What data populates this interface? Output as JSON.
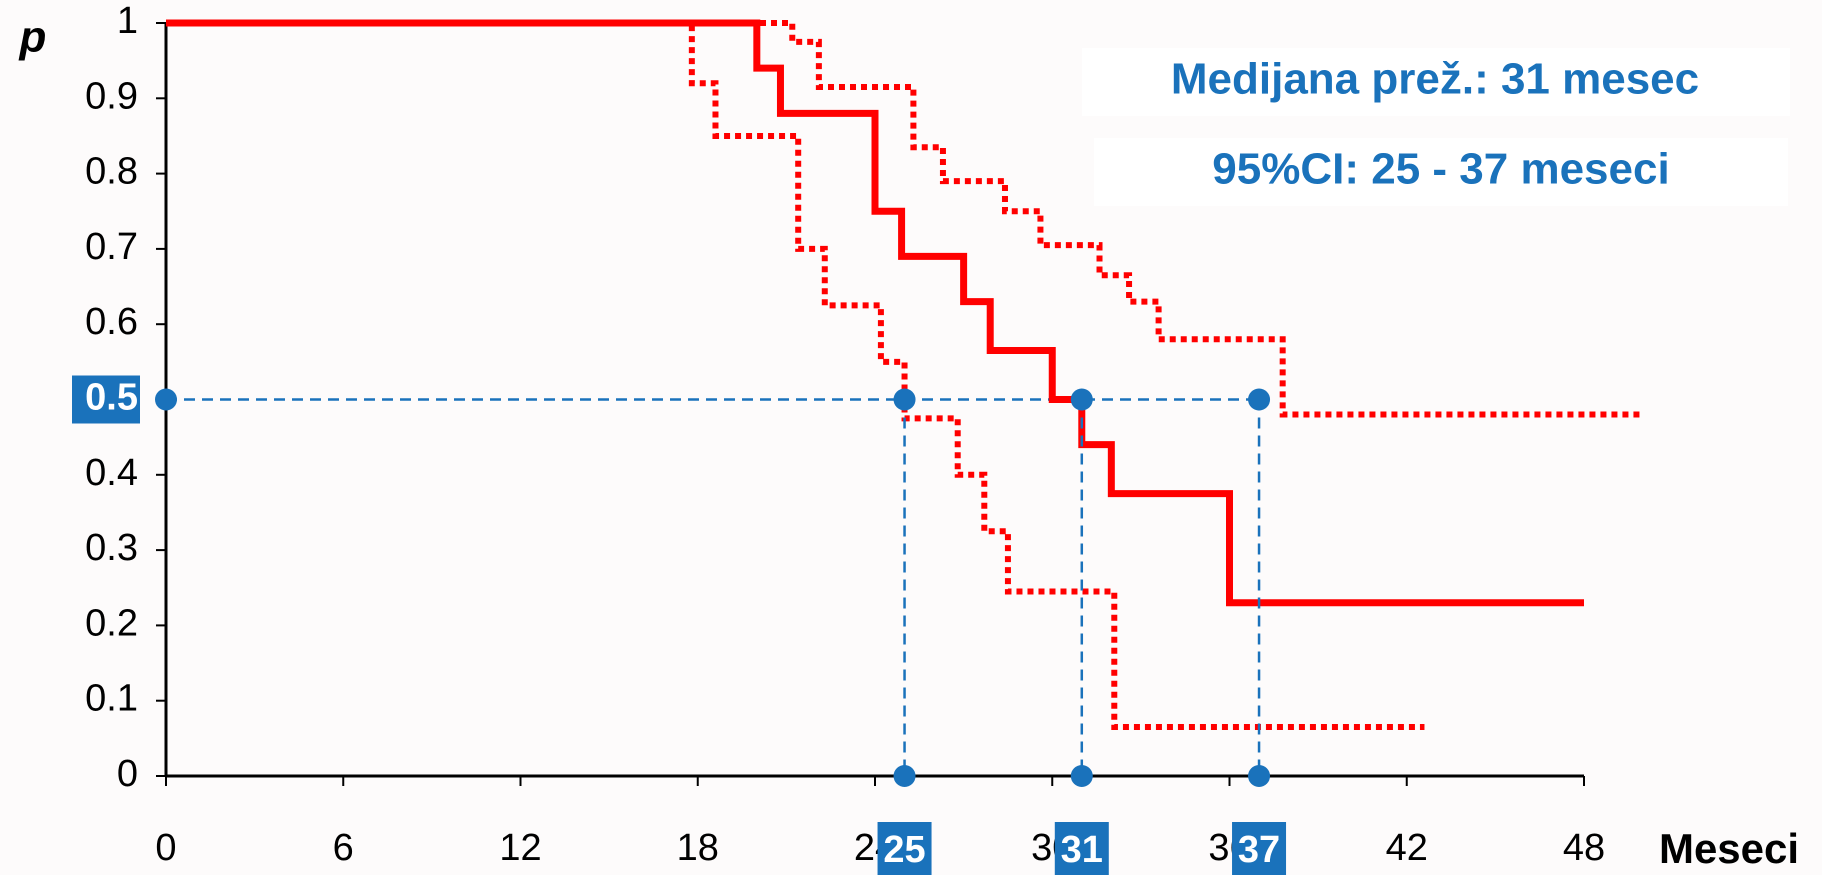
{
  "chart_data": {
    "type": "step",
    "annotations": [
      "Medijana prež.: 31 mesec",
      "95%CI: 25 - 37 meseci"
    ],
    "x_label": "Meseci",
    "y_label": "p",
    "xlim": [
      0,
      48
    ],
    "ylim": [
      0,
      1
    ],
    "xticks": [
      0,
      6,
      12,
      18,
      24,
      30,
      36,
      42,
      48
    ],
    "yticks": [
      0,
      0.1,
      0.2,
      0.3,
      0.4,
      0.5,
      0.6,
      0.7,
      0.8,
      0.9,
      1
    ],
    "series": [
      {
        "color": "#ff0000",
        "style": "solid",
        "x": [
          0,
          20,
          20.8,
          24,
          24.9,
          27,
          27.9,
          30,
          31,
          32,
          36,
          48
        ],
        "values": [
          1,
          0.94,
          0.88,
          0.75,
          0.69,
          0.63,
          0.565,
          0.5,
          0.44,
          0.375,
          0.23,
          0.23
        ]
      },
      {
        "color": "#ff0000",
        "style": "dotted",
        "x": [
          0,
          17.8,
          18.6,
          21.4,
          22.3,
          24.2,
          25,
          26.8,
          27.7,
          28.5,
          32.1,
          42.6
        ],
        "values": [
          1,
          0.92,
          0.85,
          0.7,
          0.625,
          0.55,
          0.475,
          0.4,
          0.325,
          0.245,
          0.065,
          0.065
        ]
      },
      {
        "color": "#ff0000",
        "style": "dotted",
        "x": [
          0,
          21.2,
          22.1,
          25.3,
          26.3,
          28.4,
          29.6,
          31.6,
          32.6,
          33.6,
          37.8,
          50
        ],
        "values": [
          1,
          0.975,
          0.915,
          0.835,
          0.79,
          0.75,
          0.705,
          0.665,
          0.63,
          0.58,
          0.48,
          0.48
        ]
      }
    ],
    "median_markers": {
      "color": "#1a72bb",
      "y": 0.5,
      "x": [
        25,
        31,
        37
      ]
    }
  }
}
